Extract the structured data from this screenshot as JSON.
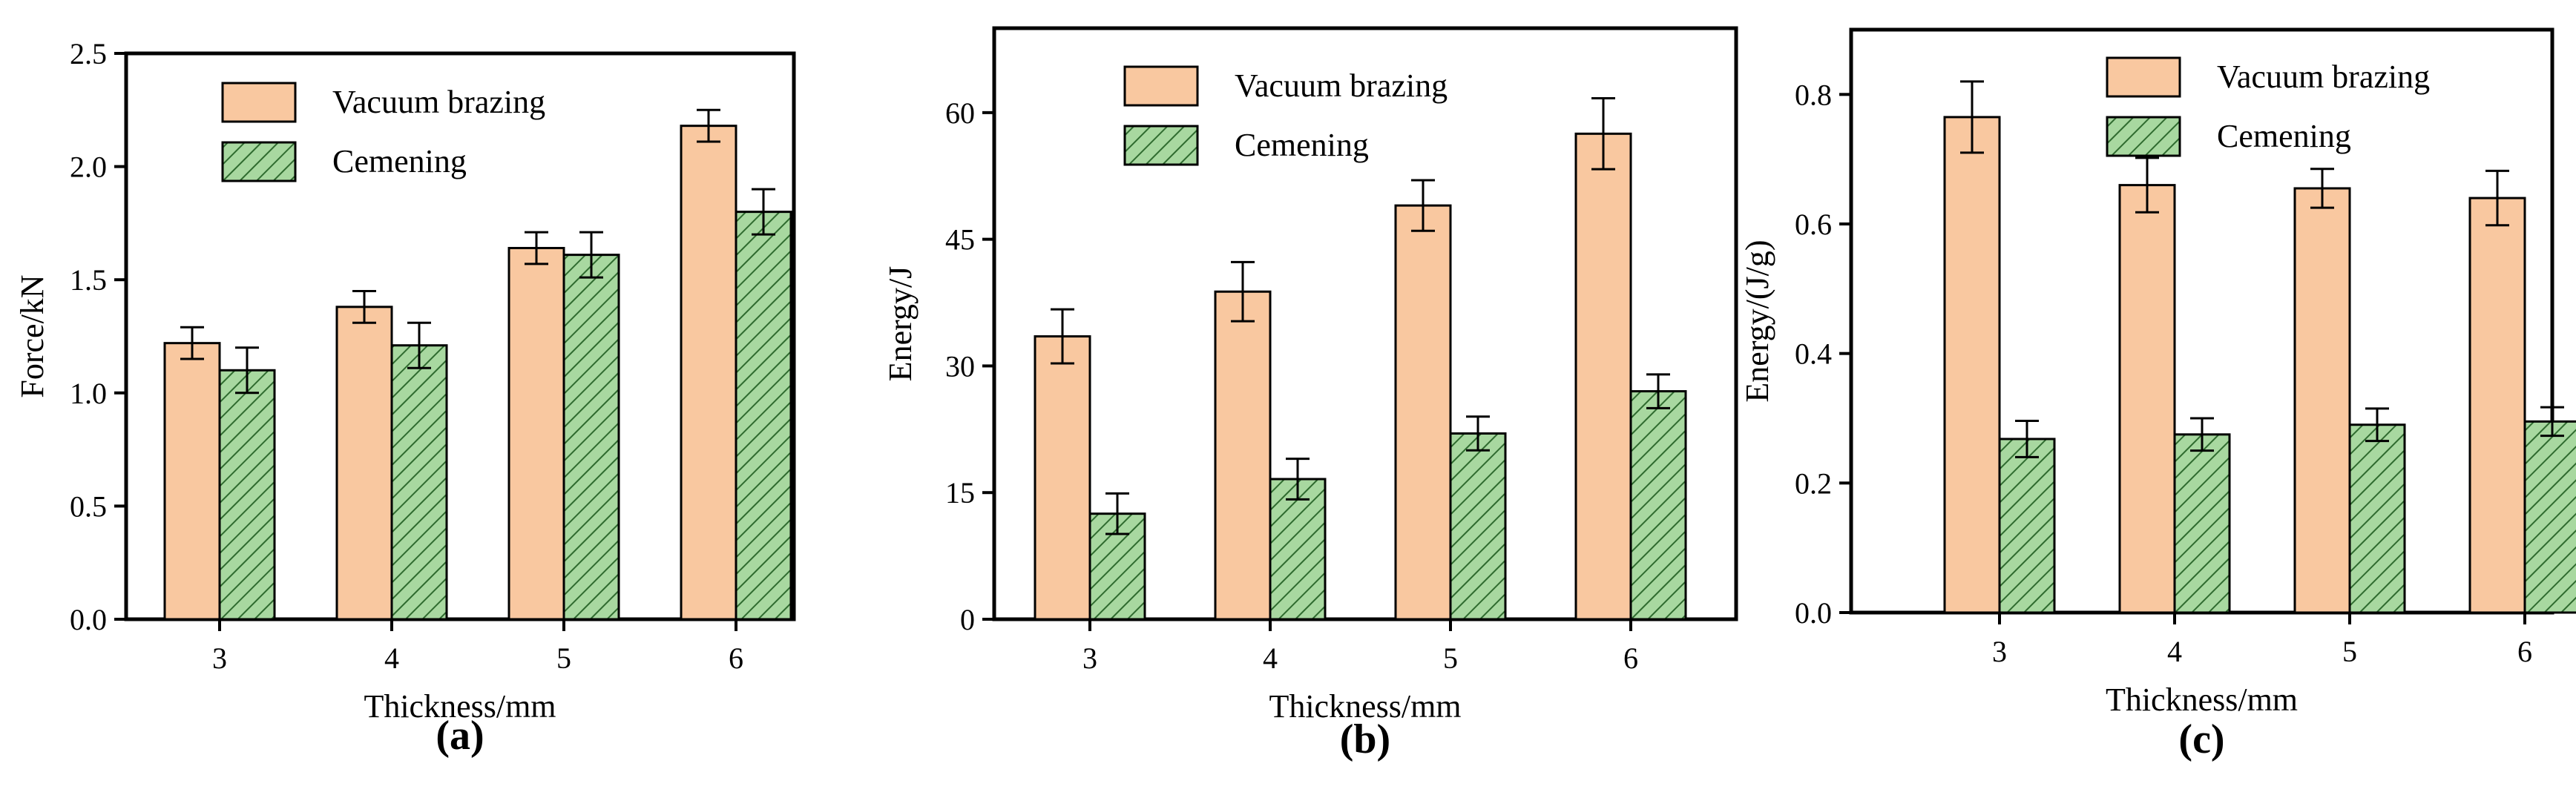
{
  "colors": {
    "vacuum_fill": "#F9C8A0",
    "cementing_fill": "#A8D8A0",
    "hatch": "#2F6B2F",
    "axis": "#000000"
  },
  "chart_data": [
    {
      "panel": "(a)",
      "type": "bar",
      "xlabel": "Thickness/mm",
      "ylabel": "Force/kN",
      "categories": [
        "3",
        "4",
        "5",
        "6"
      ],
      "ylim": [
        0,
        2.5
      ],
      "yticks": [
        "0.0",
        "0.5",
        "1.0",
        "1.5",
        "2.0",
        "2.5"
      ],
      "legend": [
        "Vacuum brazing",
        "Cemening"
      ],
      "legend_position": "top-left",
      "series": [
        {
          "name": "Vacuum brazing",
          "values": [
            1.22,
            1.38,
            1.64,
            2.18
          ],
          "errors": [
            0.07,
            0.07,
            0.07,
            0.07
          ]
        },
        {
          "name": "Cemening",
          "values": [
            1.1,
            1.21,
            1.61,
            1.8
          ],
          "errors": [
            0.1,
            0.1,
            0.1,
            0.1
          ]
        }
      ]
    },
    {
      "panel": "(b)",
      "type": "bar",
      "xlabel": "Thickness/mm",
      "ylabel": "Energy/J",
      "categories": [
        "3",
        "4",
        "5",
        "6"
      ],
      "ylim": [
        0,
        70
      ],
      "yticks": [
        "0",
        "15",
        "30",
        "45",
        "60"
      ],
      "legend": [
        "Vacuum brazing",
        "Cemening"
      ],
      "legend_position": "top-center",
      "series": [
        {
          "name": "Vacuum brazing",
          "values": [
            33.5,
            38.8,
            49.0,
            57.5
          ],
          "errors": [
            3.2,
            3.5,
            3.0,
            4.2
          ]
        },
        {
          "name": "Cemening",
          "values": [
            12.5,
            16.6,
            22.0,
            27.0
          ],
          "errors": [
            2.4,
            2.4,
            2.0,
            2.0
          ]
        }
      ]
    },
    {
      "panel": "(c)",
      "type": "bar",
      "xlabel": "Thickness/mm",
      "ylabel": "Energy/(J/g)",
      "categories": [
        "3",
        "4",
        "5",
        "6"
      ],
      "ylim": [
        0,
        0.9
      ],
      "yticks": [
        "0.0",
        "0.2",
        "0.4",
        "0.6",
        "0.8"
      ],
      "legend": [
        "Vacuum brazing",
        "Cemening"
      ],
      "legend_position": "top-right",
      "series": [
        {
          "name": "Vacuum brazing",
          "values": [
            0.765,
            0.66,
            0.655,
            0.64
          ],
          "errors": [
            0.055,
            0.042,
            0.03,
            0.042
          ]
        },
        {
          "name": "Cemening",
          "values": [
            0.268,
            0.275,
            0.29,
            0.295
          ],
          "errors": [
            0.028,
            0.025,
            0.025,
            0.022
          ]
        }
      ]
    }
  ]
}
